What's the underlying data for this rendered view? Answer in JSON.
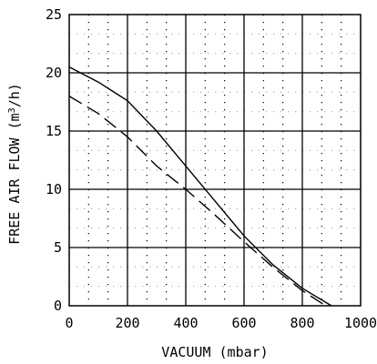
{
  "chart_data": {
    "type": "line",
    "title": "",
    "xlabel": "VACUUM (mbar)",
    "ylabel_prefix": "FREE AIR FLOW (m",
    "ylabel_sup": "3",
    "ylabel_suffix": "/h)",
    "xlim": [
      0,
      1000
    ],
    "ylim": [
      0,
      25
    ],
    "x_ticks": [
      "0",
      "200",
      "400",
      "600",
      "800",
      "1000"
    ],
    "y_ticks": [
      "0",
      "5",
      "10",
      "15",
      "20",
      "25"
    ],
    "grid": true,
    "minor_grid": "dotted",
    "legend": "none",
    "series": [
      {
        "style": "solid",
        "x": [
          0,
          100,
          200,
          300,
          400,
          500,
          600,
          700,
          800,
          900
        ],
        "y": [
          20.5,
          19.2,
          17.6,
          15.0,
          12.0,
          9.0,
          6.0,
          3.5,
          1.5,
          0
        ]
      },
      {
        "style": "dashed",
        "x": [
          0,
          100,
          200,
          300,
          400,
          500,
          600,
          700,
          800,
          880
        ],
        "y": [
          18.0,
          16.5,
          14.5,
          12.0,
          10.0,
          7.8,
          5.5,
          3.3,
          1.3,
          0
        ]
      }
    ]
  }
}
